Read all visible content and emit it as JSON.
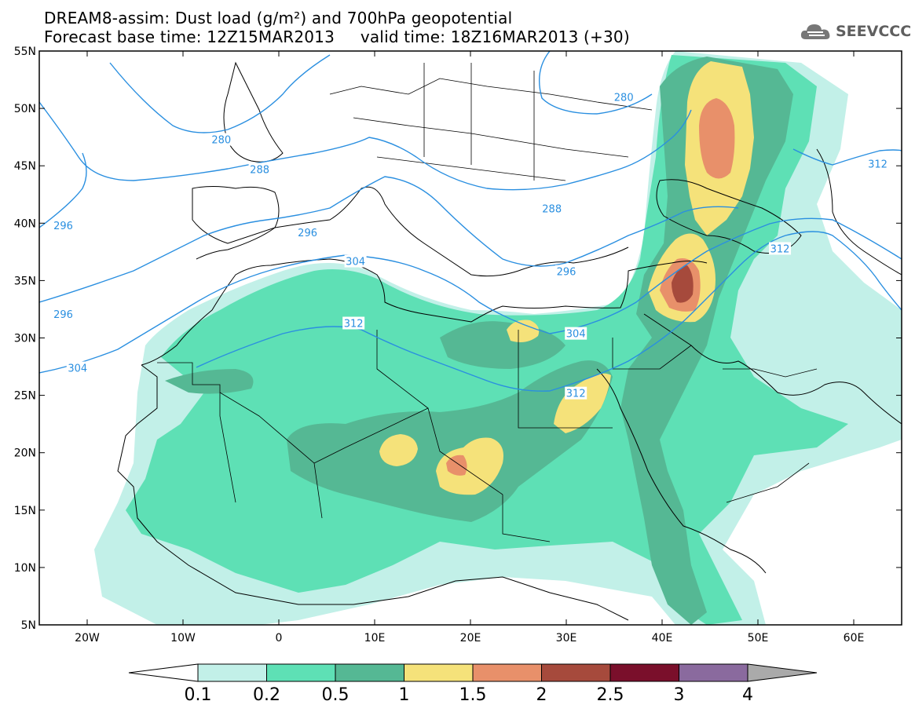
{
  "header": {
    "title_line1": "DREAM8-assim: Dust load (g/m²) and 700hPa geopotential",
    "title_line2": "Forecast base time: 12Z15MAR2013     valid time: 18Z16MAR2013 (+30)",
    "logo_text": "SEEVCCC"
  },
  "axes": {
    "lat_labels": [
      "55N",
      "50N",
      "45N",
      "40N",
      "35N",
      "30N",
      "25N",
      "20N",
      "15N",
      "10N",
      "5N"
    ],
    "lon_labels": [
      "20W",
      "10W",
      "0",
      "10E",
      "20E",
      "30E",
      "40E",
      "50E",
      "60E"
    ]
  },
  "contour_labels": [
    {
      "text": "280",
      "lon": -6,
      "lat": 47.3
    },
    {
      "text": "280",
      "lon": 36,
      "lat": 51
    },
    {
      "text": "288",
      "lon": -2,
      "lat": 44.7
    },
    {
      "text": "288",
      "lon": 28.5,
      "lat": 41.3
    },
    {
      "text": "296",
      "lon": -22.5,
      "lat": 39.8
    },
    {
      "text": "296",
      "lon": 3,
      "lat": 39.2
    },
    {
      "text": "296",
      "lon": 30,
      "lat": 35.8
    },
    {
      "text": "296",
      "lon": -22.5,
      "lat": 32.1
    },
    {
      "text": "304",
      "lon": 8,
      "lat": 36.7
    },
    {
      "text": "304",
      "lon": -21,
      "lat": 27.4
    },
    {
      "text": "304",
      "lon": 31,
      "lat": 30.4
    },
    {
      "text": "312",
      "lon": 7.8,
      "lat": 31.3
    },
    {
      "text": "312",
      "lon": 31,
      "lat": 25.2
    },
    {
      "text": "312",
      "lon": 52.3,
      "lat": 37.8
    },
    {
      "text": "312",
      "lon": 62.5,
      "lat": 45.2
    }
  ],
  "colorbar": {
    "labels": [
      "0.1",
      "0.2",
      "0.5",
      "1",
      "1.5",
      "2",
      "2.5",
      "3",
      "4"
    ],
    "colors": [
      "#c2f0e8",
      "#5ee0b5",
      "#55b894",
      "#f5e27a",
      "#e8906a",
      "#a64a3c",
      "#7a0f2b",
      "#8a6a9e"
    ],
    "end_color": "#aaaaaa"
  },
  "colors": {
    "contour": "#2a8fe0",
    "coast": "#000000"
  }
}
